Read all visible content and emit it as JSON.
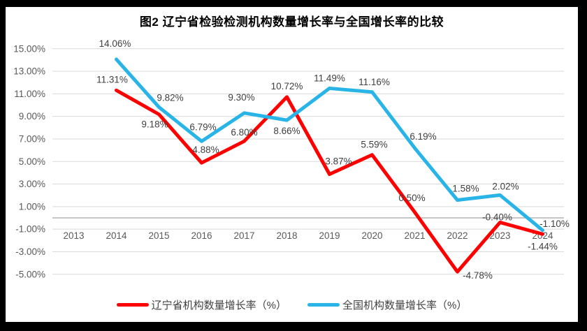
{
  "page": {
    "title": "图2 辽宁省检验检测机构数量增长率与全国增长率的比较"
  },
  "chart_data": {
    "type": "line",
    "title": "图2 辽宁省检验检测机构数量增长率与全国增长率的比较",
    "categories": [
      "2013",
      "2014",
      "2015",
      "2016",
      "2017",
      "2018",
      "2019",
      "2020",
      "2021",
      "2022",
      "2023",
      "2024"
    ],
    "series": [
      {
        "name": "辽宁省机构数量增长率（%）",
        "color": "#FF0000",
        "values": [
          null,
          11.31,
          9.18,
          4.88,
          6.8,
          10.72,
          3.87,
          5.59,
          0.5,
          -4.78,
          -0.4,
          -1.44
        ],
        "labels": [
          null,
          "11.31%",
          "9.18%",
          "4.88%",
          "6.80%",
          "10.72%",
          "3.87%",
          "5.59%",
          "0.50%",
          "-4.78%",
          "-0.40%",
          "-1.44%"
        ]
      },
      {
        "name": "全国机构数量增长率（%）",
        "color": "#29B4E8",
        "values": [
          null,
          14.06,
          9.82,
          6.79,
          9.3,
          8.66,
          11.49,
          11.16,
          6.19,
          1.58,
          2.02,
          -1.1
        ],
        "labels": [
          null,
          "14.06%",
          "9.82%",
          "6.79%",
          "9.30%",
          "8.66%",
          "11.49%",
          "11.16%",
          "6.19%",
          "1.58%",
          "2.02%",
          "-1.10%"
        ]
      }
    ],
    "y_axis": {
      "min": -5,
      "max": 15,
      "step": 2,
      "tick_labels": [
        "15.00%",
        "13.00%",
        "11.00%",
        "9.00%",
        "7.00%",
        "5.00%",
        "3.00%",
        "1.00%",
        "-1.00%",
        "-3.00%",
        "-5.00%"
      ]
    },
    "grid": true,
    "legend_position": "bottom",
    "colors": {
      "gridline": "#D9D9D9",
      "zero_line": "#C6C6C6",
      "axis_text": "#595959",
      "data_label_text": "#404040",
      "frame": "#000000",
      "plot_background": "#FFFFFF"
    }
  }
}
